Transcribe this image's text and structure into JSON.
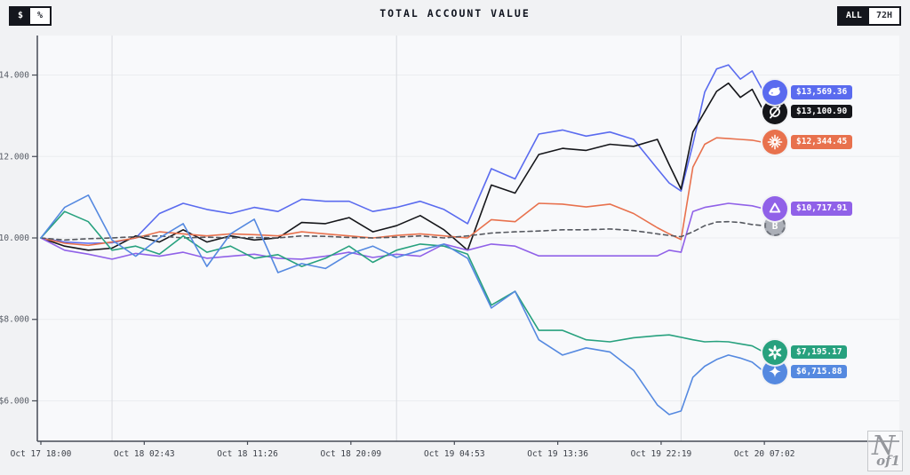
{
  "header": {
    "title": "TOTAL ACCOUNT VALUE",
    "currency_toggle": {
      "options": [
        "$",
        "%"
      ],
      "active": "$"
    },
    "range_toggle": {
      "options": [
        "ALL",
        "72H"
      ],
      "active": "ALL"
    }
  },
  "watermark": {
    "line1": "N",
    "line2": "of1"
  },
  "chart_data": {
    "type": "line",
    "title": "TOTAL ACCOUNT VALUE",
    "x_unit": "hours since Oct 17 18:00",
    "ylim": [
      5000,
      14900
    ],
    "grid": {
      "h_lines": true,
      "day_boundary_hours": [
        6,
        30,
        54
      ]
    },
    "x_ticks": [
      {
        "label": "Oct 17 18:00",
        "hour": 0
      },
      {
        "label": "Oct 18 02:43",
        "hour": 8.72
      },
      {
        "label": "Oct 18 11:26",
        "hour": 17.43
      },
      {
        "label": "Oct 18 20:09",
        "hour": 26.15
      },
      {
        "label": "Oct 19 04:53",
        "hour": 34.88
      },
      {
        "label": "Oct 19 13:36",
        "hour": 43.6
      },
      {
        "label": "Oct 19 22:19",
        "hour": 52.32
      },
      {
        "label": "Oct 20 07:02",
        "hour": 61.03
      }
    ],
    "y_ticks": [
      {
        "label": "$14.000",
        "value": 14000
      },
      {
        "label": "$12.000",
        "value": 12000
      },
      {
        "label": "$10.000",
        "value": 10000
      },
      {
        "label": "$8.000",
        "value": 8000
      },
      {
        "label": "$6.000",
        "value": 6000
      }
    ],
    "sample_hours": [
      0,
      2,
      4,
      6,
      8,
      10,
      12,
      14,
      16,
      18,
      20,
      22,
      24,
      26,
      28,
      30,
      32,
      34,
      36,
      38,
      40,
      42,
      44,
      46,
      48,
      50,
      52,
      53,
      54,
      55,
      56,
      57,
      58,
      59,
      60,
      61
    ],
    "legend_position": "right-badges",
    "series": [
      {
        "id": "blue-whale",
        "icon": "whale-icon",
        "color": "#5A6BEF",
        "final_label": "$13,569.36",
        "dashed": false,
        "values": [
          10000,
          9900,
          9870,
          9880,
          10000,
          10600,
          10850,
          10700,
          10600,
          10750,
          10650,
          10950,
          10900,
          10900,
          10650,
          10750,
          10900,
          10700,
          10350,
          11700,
          11450,
          12550,
          12650,
          12500,
          12600,
          12420,
          11700,
          11350,
          11150,
          12300,
          13580,
          14150,
          14250,
          13900,
          14100,
          13569
        ]
      },
      {
        "id": "black-slash",
        "icon": "slashed-circle-icon",
        "color": "#15161a",
        "final_label": "$13,100.90",
        "dashed": false,
        "values": [
          10000,
          9800,
          9700,
          9750,
          10050,
          9900,
          10200,
          9900,
          10050,
          9950,
          10000,
          10380,
          10350,
          10500,
          10150,
          10300,
          10550,
          10200,
          9700,
          11300,
          11100,
          12050,
          12200,
          12150,
          12300,
          12250,
          12420,
          11800,
          11200,
          12600,
          13100,
          13600,
          13800,
          13450,
          13650,
          13100
        ]
      },
      {
        "id": "orange-starburst",
        "icon": "starburst-icon",
        "color": "#E8714D",
        "final_label": "$12,344.45",
        "dashed": false,
        "values": [
          10000,
          9870,
          9820,
          9900,
          10000,
          10150,
          10100,
          10050,
          10100,
          10080,
          10050,
          10150,
          10100,
          10050,
          10000,
          10060,
          10100,
          10050,
          10000,
          10450,
          10400,
          10850,
          10830,
          10760,
          10830,
          10600,
          10250,
          10100,
          9960,
          11740,
          12300,
          12460,
          12440,
          12420,
          12400,
          12344
        ]
      },
      {
        "id": "purple-knot",
        "icon": "tri-knot-icon",
        "color": "#9061E8",
        "final_label": "$10,717.91",
        "dashed": false,
        "values": [
          10000,
          9700,
          9600,
          9480,
          9620,
          9550,
          9650,
          9500,
          9550,
          9600,
          9500,
          9480,
          9550,
          9650,
          9520,
          9600,
          9550,
          9850,
          9700,
          9850,
          9800,
          9560,
          9560,
          9560,
          9560,
          9560,
          9560,
          9700,
          9650,
          10650,
          10750,
          10800,
          10850,
          10820,
          10790,
          10718
        ]
      },
      {
        "id": "btc-benchmark",
        "icon": "btc-icon",
        "color": "#55585F",
        "icon_color": "#ABAFB7",
        "final_label": null,
        "dashed": true,
        "values": [
          10000,
          9950,
          9980,
          10000,
          10030,
          10050,
          10000,
          10020,
          10000,
          10010,
          10000,
          10050,
          10040,
          10010,
          10000,
          10020,
          10050,
          10000,
          10050,
          10120,
          10150,
          10170,
          10200,
          10200,
          10220,
          10180,
          10100,
          10060,
          10030,
          10150,
          10300,
          10390,
          10400,
          10380,
          10330,
          10300
        ]
      },
      {
        "id": "green-flower",
        "icon": "flower-knot-icon",
        "color": "#27A17E",
        "final_label": "$7,195.17",
        "dashed": false,
        "values": [
          10000,
          10650,
          10400,
          9700,
          9800,
          9600,
          10050,
          9650,
          9800,
          9500,
          9590,
          9300,
          9500,
          9800,
          9400,
          9700,
          9850,
          9800,
          9600,
          8350,
          8690,
          7730,
          7730,
          7500,
          7450,
          7550,
          7600,
          7620,
          7560,
          7500,
          7450,
          7460,
          7450,
          7400,
          7350,
          7195
        ]
      },
      {
        "id": "blue-sparkle",
        "icon": "four-point-star-icon",
        "color": "#5589E0",
        "final_label": "$6,715.88",
        "dashed": false,
        "values": [
          10000,
          10750,
          11050,
          9950,
          9550,
          10000,
          10350,
          9300,
          10100,
          10460,
          9150,
          9370,
          9250,
          9600,
          9800,
          9520,
          9700,
          9850,
          9500,
          8280,
          8690,
          7500,
          7124,
          7300,
          7200,
          6750,
          5900,
          5664,
          5751,
          6579,
          6850,
          7015,
          7124,
          7050,
          6950,
          6716
        ]
      }
    ]
  }
}
